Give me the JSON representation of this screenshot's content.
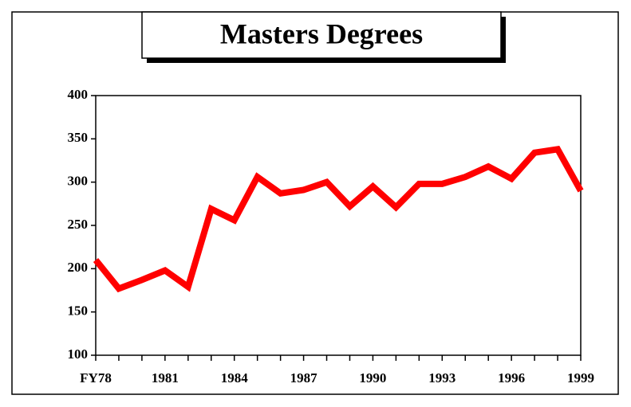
{
  "chart_data": {
    "type": "line",
    "title": "Masters Degrees",
    "categories": [
      "FY78",
      null,
      null,
      "1981",
      null,
      null,
      "1984",
      null,
      null,
      "1987",
      null,
      null,
      "1990",
      null,
      null,
      "1993",
      null,
      null,
      "1996",
      null,
      null,
      "1999"
    ],
    "values": [
      210,
      177,
      187,
      198,
      179,
      269,
      256,
      306,
      287,
      291,
      300,
      272,
      295,
      271,
      298,
      298,
      306,
      318,
      304,
      334,
      338,
      290
    ],
    "color": "#ff0000",
    "ylim": [
      100,
      400
    ],
    "yticks": [
      100,
      150,
      200,
      250,
      300,
      350,
      400
    ]
  }
}
